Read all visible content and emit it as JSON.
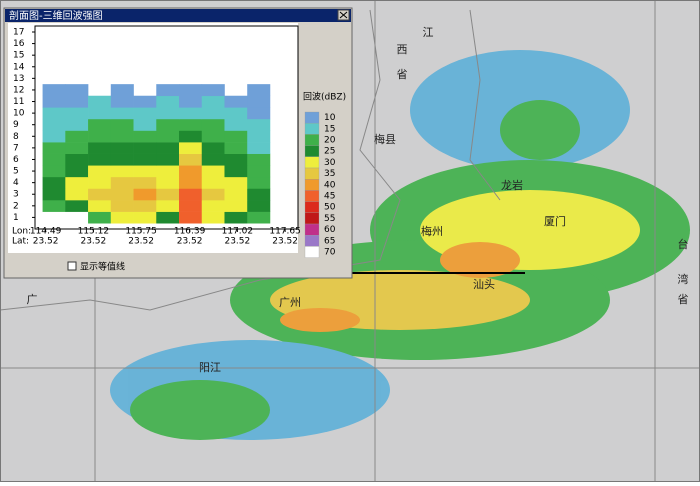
{
  "window": {
    "title": "剖面图-三维回波强图",
    "checkbox": "显示等值线"
  },
  "map_labels": [
    "江",
    "西",
    "省",
    "梅县",
    "龙岩",
    "厦门",
    "梅州",
    "汕头",
    "广州",
    "阳江",
    "台",
    "湾",
    "省",
    "广"
  ],
  "chart_data": {
    "type": "heatmap",
    "x": [
      114.6,
      114.9,
      115.2,
      115.5,
      115.8,
      116.1,
      116.4,
      116.7,
      117.0,
      117.3
    ],
    "y": [
      1,
      2,
      3,
      4,
      5,
      6,
      7,
      8,
      9,
      10,
      11,
      12
    ],
    "z": [
      [
        null,
        null,
        20,
        30,
        30,
        25,
        45,
        30,
        25,
        20
      ],
      [
        20,
        25,
        30,
        35,
        35,
        30,
        45,
        30,
        30,
        25
      ],
      [
        25,
        30,
        35,
        35,
        40,
        35,
        45,
        35,
        30,
        25
      ],
      [
        25,
        30,
        30,
        35,
        35,
        30,
        40,
        30,
        30,
        20
      ],
      [
        20,
        25,
        30,
        30,
        30,
        30,
        40,
        30,
        25,
        20
      ],
      [
        20,
        25,
        25,
        25,
        25,
        25,
        35,
        25,
        25,
        20
      ],
      [
        20,
        20,
        25,
        25,
        25,
        25,
        30,
        25,
        20,
        15
      ],
      [
        15,
        20,
        20,
        20,
        20,
        20,
        25,
        20,
        20,
        15
      ],
      [
        15,
        15,
        20,
        20,
        15,
        20,
        20,
        20,
        15,
        15
      ],
      [
        15,
        15,
        15,
        15,
        15,
        15,
        15,
        15,
        15,
        10
      ],
      [
        10,
        10,
        15,
        10,
        10,
        15,
        10,
        15,
        10,
        10
      ],
      [
        10,
        10,
        null,
        10,
        null,
        10,
        10,
        10,
        null,
        10
      ]
    ],
    "xlim": [
      114.35,
      117.82
    ],
    "ylim": [
      0,
      17
    ],
    "xticks": [
      114.49,
      115.12,
      115.75,
      116.39,
      117.02,
      117.65
    ],
    "lat": [
      23.52,
      23.52,
      23.52,
      23.52,
      23.52,
      23.52
    ],
    "lon_label": "Lon:",
    "lat_label": "Lat:",
    "yticks": [
      1,
      2,
      3,
      4,
      5,
      6,
      7,
      8,
      9,
      10,
      11,
      12,
      13,
      14,
      15,
      16,
      17
    ],
    "legend_title": "回波(dBZ)",
    "levels": [
      10,
      15,
      20,
      25,
      30,
      35,
      40,
      45,
      50,
      55,
      60,
      65,
      70
    ],
    "colors": [
      "#6fa0d8",
      "#5ec8c8",
      "#3fb04a",
      "#1f8a30",
      "#eeee3c",
      "#e6c840",
      "#f09a2c",
      "#f0602c",
      "#dc2a1c",
      "#c01818",
      "#c0308a",
      "#9a78c8",
      "#ffffff"
    ]
  }
}
